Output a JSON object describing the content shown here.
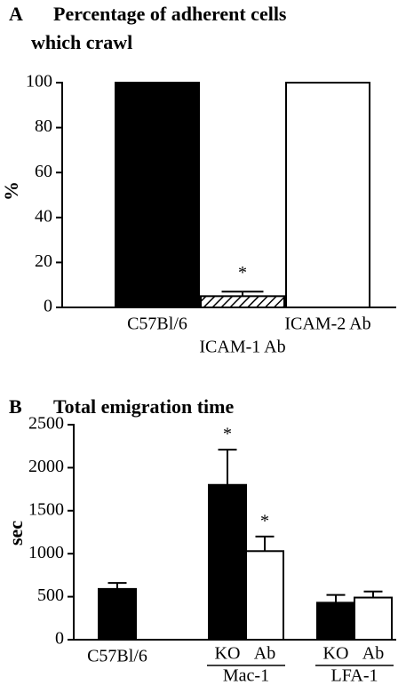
{
  "chart_data": [
    {
      "type": "bar",
      "panel": "A",
      "title": [
        "Percentage of adherent cells",
        "which crawl"
      ],
      "y_label": "%",
      "categories": [
        "C57Bl/6",
        "ICAM-1 Ab",
        "ICAM-2 Ab"
      ],
      "values": [
        100,
        5,
        100
      ],
      "errors": [
        null,
        2,
        null
      ],
      "fills": [
        "#000000",
        "hatched",
        "#ffffff"
      ],
      "ylim": [
        0,
        100
      ],
      "yticks": [
        0,
        20,
        40,
        60,
        80,
        100
      ],
      "annotations": [
        {
          "text": "*",
          "category": "ICAM-1 Ab"
        }
      ]
    },
    {
      "type": "grouped_bar",
      "panel": "B",
      "title": [
        "Total emigration time"
      ],
      "y_label": "sec",
      "categories": [
        "C57Bl/6",
        "Mac-1",
        "LFA-1"
      ],
      "series": [
        {
          "name": "KO",
          "color": "#000000",
          "values": [
            590,
            1800,
            430
          ],
          "errors": [
            70,
            410,
            90
          ]
        },
        {
          "name": "Ab",
          "color": "#ffffff",
          "values": [
            null,
            1030,
            490
          ],
          "errors": [
            null,
            170,
            70
          ]
        }
      ],
      "ylim": [
        0,
        2500
      ],
      "yticks": [
        0,
        500,
        1000,
        1500,
        2000,
        2500
      ],
      "annotations": [
        {
          "text": "*",
          "series": "KO",
          "category": "Mac-1"
        },
        {
          "text": "*",
          "series": "Ab",
          "category": "Mac-1"
        }
      ]
    }
  ]
}
